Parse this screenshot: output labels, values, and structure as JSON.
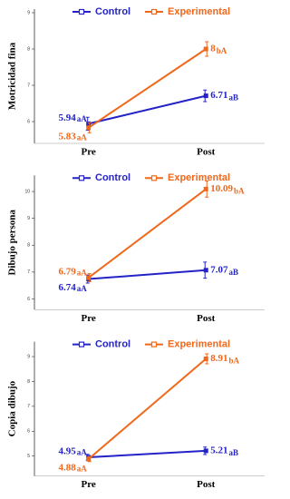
{
  "chart_data": [
    {
      "type": "line",
      "ylabel": "Motricidad fina",
      "categories": [
        "Pre",
        "Post"
      ],
      "ylim": [
        5.4,
        9.1
      ],
      "yticks": [
        6,
        7,
        8,
        9
      ],
      "legend": "top",
      "series": [
        {
          "name": "Control",
          "color": "#2323c8",
          "values": [
            5.94,
            6.71
          ],
          "errors": [
            0.18,
            0.16
          ],
          "letters": [
            "aA",
            "aB"
          ]
        },
        {
          "name": "Experimental",
          "color": "#f0681c",
          "values": [
            5.83,
            8.0
          ],
          "errors": [
            0.14,
            0.2
          ],
          "letters": [
            "aA",
            "bA"
          ]
        }
      ]
    },
    {
      "type": "line",
      "ylabel": "Dibujo persona",
      "categories": [
        "Pre",
        "Post"
      ],
      "ylim": [
        5.6,
        10.6
      ],
      "yticks": [
        6,
        7,
        8,
        9,
        10
      ],
      "legend": "top",
      "series": [
        {
          "name": "Control",
          "color": "#2323c8",
          "values": [
            6.74,
            7.07
          ],
          "errors": [
            0.15,
            0.3
          ],
          "letters": [
            "aA",
            "aB"
          ]
        },
        {
          "name": "Experimental",
          "color": "#f0681c",
          "values": [
            6.79,
            10.09
          ],
          "errors": [
            0.15,
            0.3
          ],
          "letters": [
            "aA",
            "bA"
          ]
        }
      ]
    },
    {
      "type": "line",
      "ylabel": "Copia dibujo",
      "categories": [
        "Pre",
        "Post"
      ],
      "ylim": [
        4.2,
        9.6
      ],
      "yticks": [
        5,
        6,
        7,
        8,
        9
      ],
      "legend": "top",
      "series": [
        {
          "name": "Control",
          "color": "#2323c8",
          "values": [
            4.95,
            5.21
          ],
          "errors": [
            0.12,
            0.15
          ],
          "letters": [
            "aA",
            "aB"
          ]
        },
        {
          "name": "Experimental",
          "color": "#f0681c",
          "values": [
            4.88,
            8.91
          ],
          "errors": [
            0.1,
            0.2
          ],
          "letters": [
            "aA",
            "bA"
          ]
        }
      ]
    }
  ]
}
